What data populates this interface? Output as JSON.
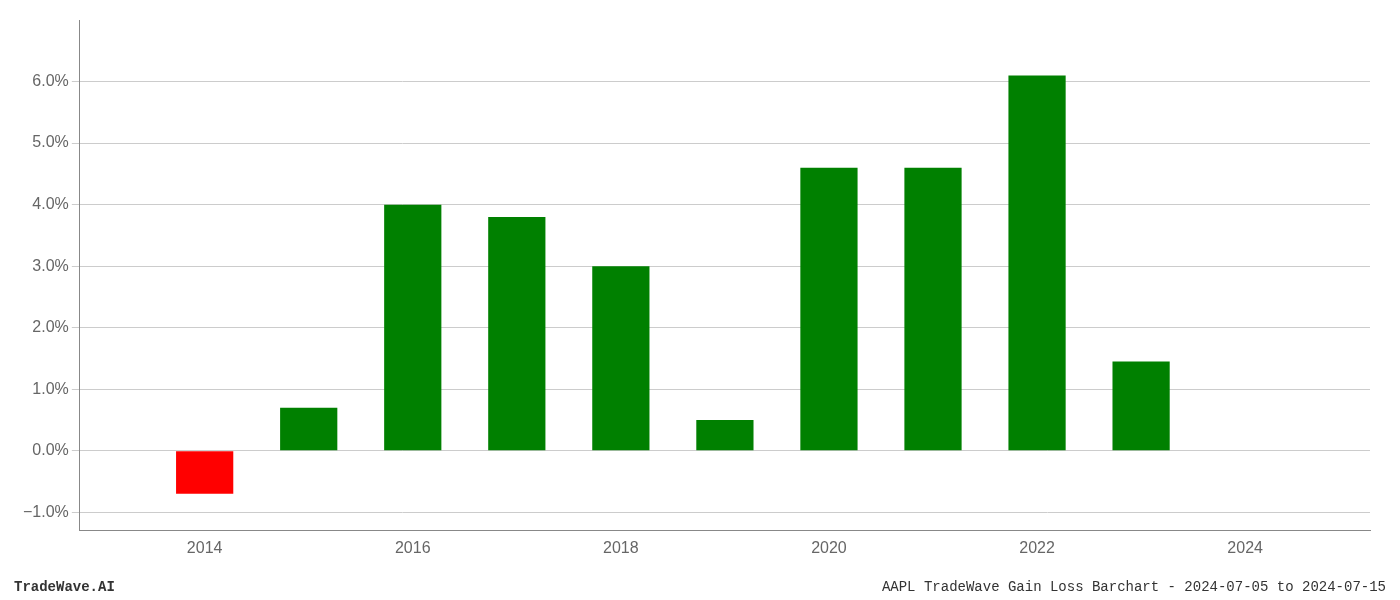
{
  "chart_data": {
    "type": "bar",
    "x": [
      2014,
      2015,
      2016,
      2017,
      2018,
      2019,
      2020,
      2021,
      2022,
      2023
    ],
    "values": [
      -0.007,
      0.007,
      0.04,
      0.038,
      0.03,
      0.005,
      0.046,
      0.046,
      0.061,
      0.0145
    ],
    "colors": [
      "#ff0000",
      "#008000",
      "#008000",
      "#008000",
      "#008000",
      "#008000",
      "#008000",
      "#008000",
      "#008000",
      "#008000"
    ],
    "xlim": [
      2012.8,
      2025.2
    ],
    "xticks": [
      2014,
      2016,
      2018,
      2020,
      2022,
      2024
    ],
    "ylim": [
      -0.013,
      0.07
    ],
    "yticks": [
      {
        "value": -0.01,
        "label": "−1.0%"
      },
      {
        "value": 0.0,
        "label": "0.0%"
      },
      {
        "value": 0.01,
        "label": "1.0%"
      },
      {
        "value": 0.02,
        "label": "2.0%"
      },
      {
        "value": 0.03,
        "label": "3.0%"
      },
      {
        "value": 0.04,
        "label": "4.0%"
      },
      {
        "value": 0.05,
        "label": "5.0%"
      },
      {
        "value": 0.06,
        "label": "6.0%"
      }
    ],
    "grid": true,
    "annotations": [
      "TradeWave.AI",
      "AAPL TradeWave Gain Loss Barchart - 2024-07-05 to 2024-07-15"
    ]
  }
}
